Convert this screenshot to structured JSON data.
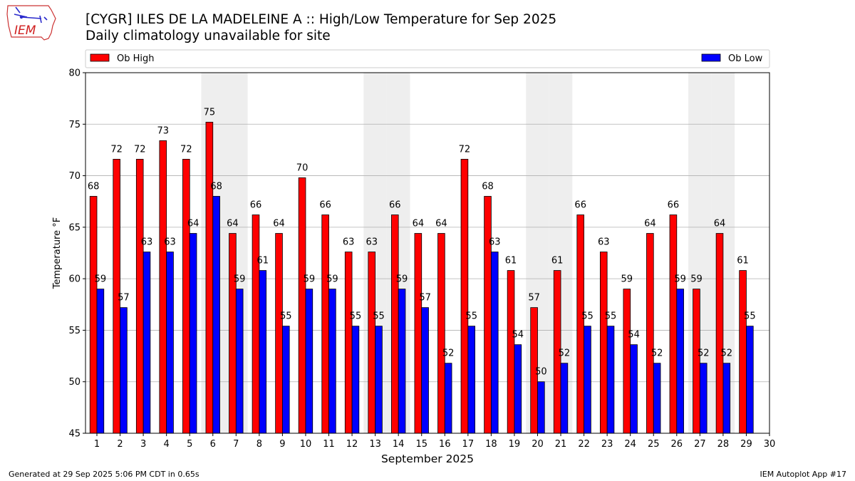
{
  "header": {
    "logo_text": "IEM",
    "title": "[CYGR] ILES DE LA MADELEINE A :: High/Low Temperature for Sep 2025",
    "subtitle": "Daily climatology unavailable for site"
  },
  "footer": {
    "generated": "Generated at 29 Sep 2025 5:06 PM CDT in 0.65s",
    "app": "IEM Autoplot App #17"
  },
  "colors": {
    "high": "#ff0000",
    "low": "#0000ff",
    "weekend": "#eeeeee",
    "grid": "#b0b0b0"
  },
  "chart_data": {
    "type": "bar",
    "xlabel": "September 2025",
    "ylabel": "Temperature °F",
    "ylim": [
      45,
      80
    ],
    "yticks": [
      45,
      50,
      55,
      60,
      65,
      70,
      75,
      80
    ],
    "grid": "horizontal",
    "legend_placement": "top",
    "categories": [
      "1",
      "2",
      "3",
      "4",
      "5",
      "6",
      "7",
      "8",
      "9",
      "10",
      "11",
      "12",
      "13",
      "14",
      "15",
      "16",
      "17",
      "18",
      "19",
      "20",
      "21",
      "22",
      "23",
      "24",
      "25",
      "26",
      "27",
      "28",
      "29",
      "30"
    ],
    "shaded_days": [
      6,
      7,
      13,
      14,
      20,
      21,
      27,
      28
    ],
    "series": [
      {
        "name": "Ob High",
        "color": "#ff0000",
        "values": [
          68.0,
          71.6,
          71.6,
          73.4,
          71.6,
          75.2,
          64.4,
          66.2,
          64.4,
          69.8,
          66.2,
          62.6,
          62.6,
          66.2,
          64.4,
          64.4,
          71.6,
          68.0,
          60.8,
          57.2,
          60.8,
          66.2,
          62.6,
          59.0,
          64.4,
          66.2,
          59.0,
          64.4,
          60.8,
          null
        ],
        "labels": [
          "68",
          "72",
          "72",
          "73",
          "72",
          "75",
          "64",
          "66",
          "64",
          "70",
          "66",
          "63",
          "63",
          "66",
          "64",
          "64",
          "72",
          "68",
          "61",
          "57",
          "61",
          "66",
          "63",
          "59",
          "64",
          "66",
          "59",
          "64",
          "61",
          ""
        ]
      },
      {
        "name": "Ob Low",
        "color": "#0000ff",
        "values": [
          59.0,
          57.2,
          62.6,
          62.6,
          64.4,
          68.0,
          59.0,
          60.8,
          55.4,
          59.0,
          59.0,
          55.4,
          55.4,
          59.0,
          57.2,
          51.8,
          55.4,
          62.6,
          53.6,
          50.0,
          51.8,
          55.4,
          55.4,
          53.6,
          51.8,
          59.0,
          51.8,
          51.8,
          55.4,
          null
        ],
        "labels": [
          "59",
          "57",
          "63",
          "63",
          "64",
          "68",
          "59",
          "61",
          "55",
          "59",
          "59",
          "55",
          "55",
          "59",
          "57",
          "52",
          "55",
          "63",
          "54",
          "50",
          "52",
          "55",
          "55",
          "54",
          "52",
          "59",
          "52",
          "52",
          "55",
          ""
        ]
      }
    ]
  }
}
